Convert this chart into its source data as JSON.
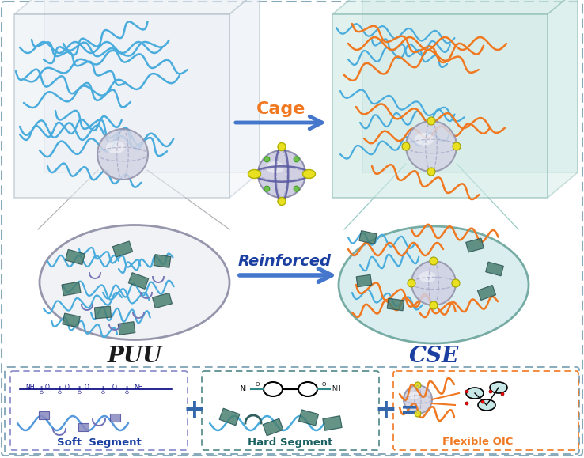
{
  "bg_color": "#ffffff",
  "outer_border_color": "#88aabb",
  "cage_text": "Cage",
  "cage_color": "#f07820",
  "reinforced_text": "Reinforced",
  "reinforced_color": "#1a3fa0",
  "puu_text": "PUU",
  "puu_color": "#1a1a1a",
  "cse_text": "CSE",
  "cse_color": "#1a3fa0",
  "soft_segment_text": "Soft  Segment",
  "soft_segment_color": "#1a3fa0",
  "hard_segment_text": "Hard Segment",
  "hard_segment_color": "#1a6060",
  "flexible_oic_text": "Flexible OIC",
  "flexible_oic_color": "#f07820",
  "polymer_color_blue": "#4aacdd",
  "polymer_color_orange": "#f07820",
  "hard_rect_color": "#4a8070",
  "soft_rect_color": "#8888c0",
  "arrow_color": "#4477cc",
  "left_box_face": "#e8eef4",
  "right_box_face": "#cce8e4",
  "left_box_edge": "#aab8c4",
  "right_box_edge": "#88b8b0",
  "left_oval_face": "#f0f2f6",
  "right_oval_face": "#d8eef0",
  "left_oval_edge": "#9090a8",
  "right_oval_edge": "#70a8a0"
}
